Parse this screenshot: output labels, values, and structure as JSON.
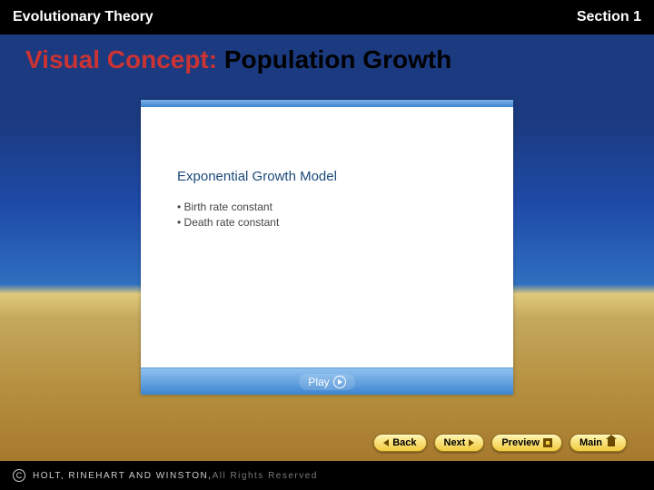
{
  "header": {
    "left": "Evolutionary Theory",
    "right": "Section 1",
    "text_color": "#ffffff",
    "bg_color": "#000000",
    "font_size": 17
  },
  "title": {
    "prefix": "Visual Concept: ",
    "main": "Population Growth",
    "prefix_color": "#cc3333",
    "main_color": "#000000",
    "font_size": 28
  },
  "background": {
    "sky_top": "#1b3a80",
    "sky_mid": "#1e4ba8",
    "sky_low": "#2f6fc0",
    "horizon": "#e0c97a",
    "ground_mid": "#b58e3e",
    "ground_low": "#a07028"
  },
  "media_panel": {
    "background": "#ffffff",
    "topbar_gradient": [
      "#7db1e8",
      "#3d85d0"
    ],
    "heading": "Exponential Growth Model",
    "heading_color": "#1a4a7a",
    "heading_fontsize": 15,
    "bullets": [
      "Birth rate constant",
      "Death rate constant"
    ],
    "bullet_color": "#444444",
    "bullet_fontsize": 12,
    "playbar": {
      "gradient": [
        "#8fc1f0",
        "#3d85d0"
      ],
      "label": "Play",
      "text_color": "#ffffff"
    }
  },
  "nav": {
    "buttons": [
      {
        "id": "back",
        "label": "Back",
        "icon": "arrow-left"
      },
      {
        "id": "next",
        "label": "Next",
        "icon": "arrow-right"
      },
      {
        "id": "preview",
        "label": "Preview",
        "icon": "square"
      },
      {
        "id": "main",
        "label": "Main",
        "icon": "home"
      }
    ],
    "gradient": [
      "#fff4b0",
      "#f2cb3f"
    ],
    "border_color": "#9a7a1a",
    "icon_color": "#6b4a00",
    "text_color": "#000000",
    "font_size": 11
  },
  "footer": {
    "publisher": "HOLT, RINEHART AND WINSTON,",
    "rights": " All Rights Reserved",
    "copyright_symbol": "C",
    "bg_color": "#000000",
    "text_color": "#cfcfcf",
    "dim_color": "#7a7a7a",
    "font_size": 10
  }
}
